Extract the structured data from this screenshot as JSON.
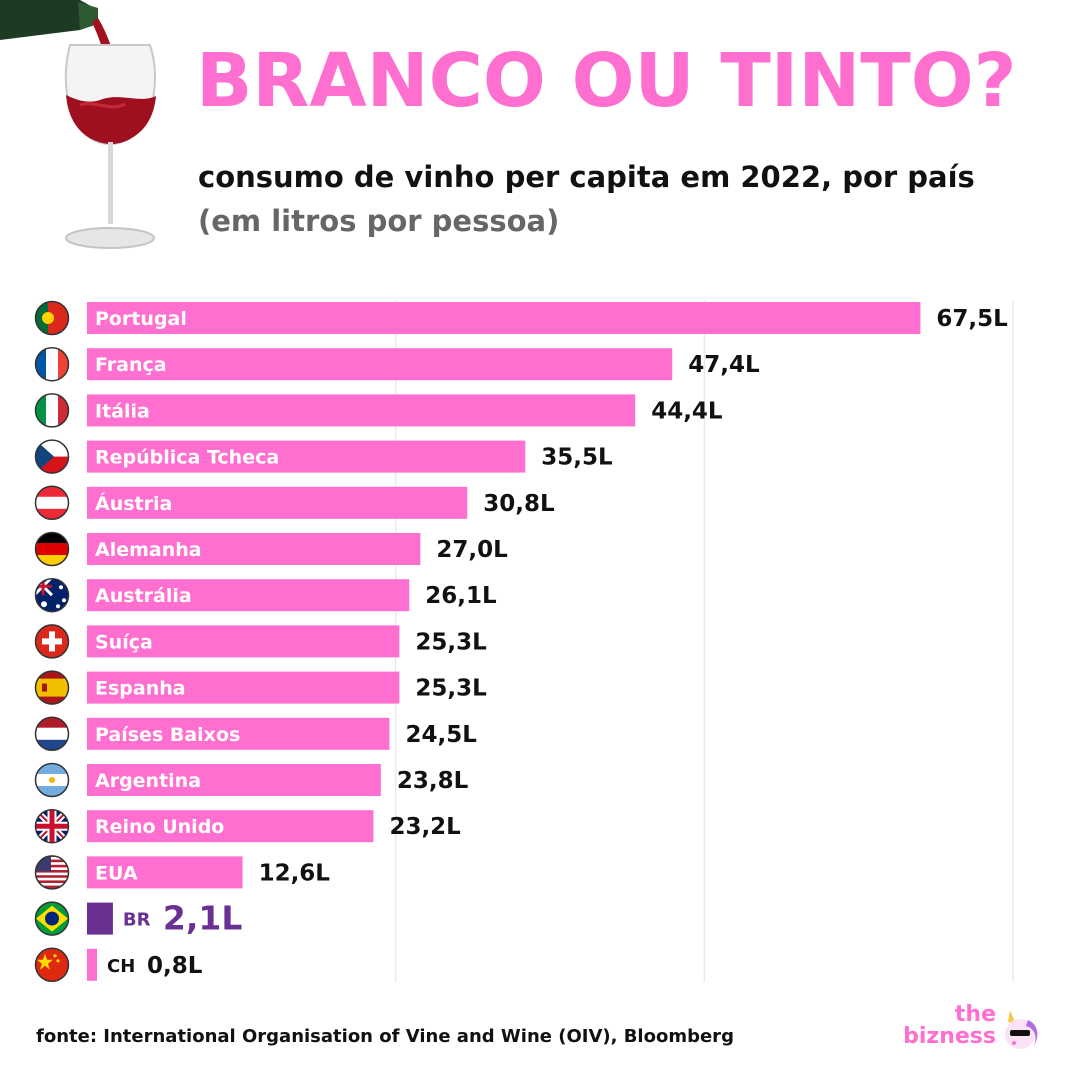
{
  "header": {
    "title": "BRANCO OU TINTO?",
    "subtitle": "consumo de vinho per capita em 2022, por país",
    "unit_note": "(em litros por pessoa)"
  },
  "chart_data": {
    "type": "bar",
    "orientation": "horizontal",
    "xlim": [
      0,
      75
    ],
    "grid": true,
    "categories": [
      "Portugal",
      "França",
      "Itália",
      "República Tcheca",
      "Áustria",
      "Alemanha",
      "Austrália",
      "Suíça",
      "Espanha",
      "Países Baixos",
      "Argentina",
      "Reino Unido",
      "EUA",
      "BR",
      "CH"
    ],
    "values": [
      67.5,
      47.4,
      44.4,
      35.5,
      30.8,
      27.0,
      26.1,
      25.3,
      25.3,
      24.5,
      23.8,
      23.2,
      12.6,
      2.1,
      0.8
    ],
    "value_labels": [
      "67,5L",
      "47,4L",
      "44,4L",
      "35,5L",
      "30,8L",
      "27,0L",
      "26,1L",
      "25,3L",
      "25,3L",
      "24,5L",
      "23,8L",
      "23,2L",
      "12,6L",
      "2,1L",
      "0,8L"
    ],
    "flags": [
      "portugal-flag-icon",
      "france-flag-icon",
      "italy-flag-icon",
      "czech-flag-icon",
      "austria-flag-icon",
      "germany-flag-icon",
      "australia-flag-icon",
      "switzerland-flag-icon",
      "spain-flag-icon",
      "netherlands-flag-icon",
      "argentina-flag-icon",
      "uk-flag-icon",
      "usa-flag-icon",
      "brazil-flag-icon",
      "china-flag-icon"
    ],
    "highlight_index": 13,
    "colors": {
      "bar": "#ff6fcf",
      "highlight": "#6a3193",
      "title": "#ff6fcf",
      "grid": "#e6e6e6"
    }
  },
  "footer": {
    "source": "fonte: International Organisation of Vine and Wine (OIV), Bloomberg",
    "brand_line1": "the",
    "brand_line2": "bizness"
  }
}
